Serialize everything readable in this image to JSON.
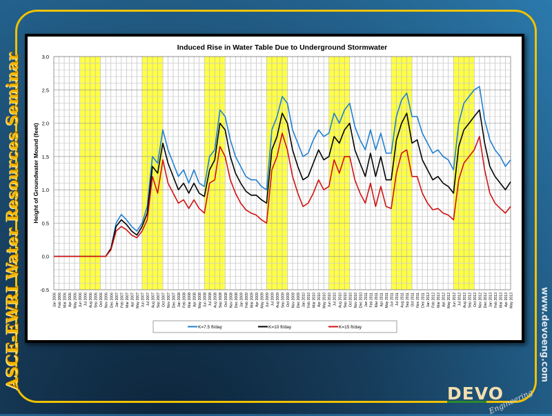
{
  "slide": {
    "side_title": "ASCE-EWRI Water Resources Seminar",
    "website": "www.devoeng.com",
    "logo_text": "DEVO",
    "logo_subtext": "Engineering"
  },
  "colors": {
    "blue": "#1f7fd0",
    "black": "#000000",
    "red": "#d01010",
    "highlight": "#ffff44",
    "frame": "#f2c200"
  },
  "chart_data": {
    "type": "line",
    "title": "Induced Rise in Water Table Due to Underground Stormwater",
    "xlabel": "",
    "ylabel": "Height of Groundwater Mound (feet)",
    "ylim": [
      -0.5,
      3.0
    ],
    "yticks": [
      "-0.5",
      "0.0",
      "0.5",
      "1.0",
      "1.5",
      "2.0",
      "2.5",
      "3.0"
    ],
    "grid": true,
    "legend_position": "bottom",
    "x": [
      "Jan 2006",
      "Feb 2006",
      "Mar 2006",
      "Apr 2006",
      "May 2006",
      "Jun 2006",
      "Jul 2006",
      "Aug 2006",
      "Sep 2006",
      "Oct 2006",
      "Nov 2006",
      "Dec 2006",
      "Jan 2007",
      "Feb 2007",
      "Mar 2007",
      "Apr 2007",
      "May 2007",
      "Jun 2007",
      "Jul 2007",
      "Aug 2007",
      "Sep 2007",
      "Oct 2007",
      "Nov 2007",
      "Dec 2007",
      "Jan 2008",
      "Feb 2008",
      "Mar 2008",
      "Apr 2008",
      "May 2008",
      "Jun 2008",
      "Jul 2008",
      "Aug 2008",
      "Sep 2008",
      "Oct 2008",
      "Nov 2008",
      "Dec 2008",
      "Jan 2009",
      "Feb 2009",
      "Mar 2009",
      "Apr 2009",
      "May 2009",
      "Jun 2009",
      "Jul 2009",
      "Aug 2009",
      "Sep 2009",
      "Oct 2009",
      "Nov 2009",
      "Dec 2009",
      "Jan 2010",
      "Feb 2010",
      "Mar 2010",
      "Apr 2010",
      "May 2010",
      "Jun 2010",
      "Jul 2010",
      "Aug 2010",
      "Sep 2010",
      "Oct 2010",
      "Nov 2010",
      "Dec 2010",
      "Jan 2011",
      "Feb 2011",
      "Mar 2011",
      "Apr 2011",
      "May 2011",
      "Jun 2011",
      "Jul 2011",
      "Aug 2011",
      "Sep 2011",
      "Oct 2011",
      "Nov 2011",
      "Dec 2011",
      "Jan 2012",
      "Feb 2012",
      "Mar 2012",
      "Apr 2012",
      "May 2012",
      "Jun 2012",
      "Jul 2012",
      "Aug 2012",
      "Sep 2012",
      "Oct 2012",
      "Nov 2012",
      "Dec 2012",
      "Jan 2013",
      "Feb 2013",
      "Mar 2013",
      "Apr 2013",
      "May 2013"
    ],
    "highlight_periods": [
      {
        "start": "Jun 2006",
        "end": "Oct 2006"
      },
      {
        "start": "Jun 2007",
        "end": "Oct 2007"
      },
      {
        "start": "Jun 2008",
        "end": "Oct 2008"
      },
      {
        "start": "Jun 2009",
        "end": "Oct 2009"
      },
      {
        "start": "Jun 2010",
        "end": "Oct 2010"
      },
      {
        "start": "Jun 2011",
        "end": "Oct 2011"
      },
      {
        "start": "Jun 2012",
        "end": "Oct 2012"
      }
    ],
    "series": [
      {
        "name": "K=7.5 ft/day",
        "color": "#1f7fd0",
        "values": [
          0,
          0,
          0,
          0,
          0,
          0,
          0,
          0,
          0,
          0,
          0,
          0.12,
          0.5,
          0.63,
          0.55,
          0.45,
          0.38,
          0.5,
          0.75,
          1.5,
          1.4,
          1.9,
          1.6,
          1.4,
          1.2,
          1.3,
          1.1,
          1.3,
          1.1,
          1.05,
          1.5,
          1.6,
          2.2,
          2.1,
          1.75,
          1.5,
          1.35,
          1.2,
          1.15,
          1.15,
          1.05,
          1.0,
          1.9,
          2.1,
          2.4,
          2.3,
          1.9,
          1.7,
          1.5,
          1.55,
          1.75,
          1.9,
          1.8,
          1.85,
          2.15,
          2.0,
          2.2,
          2.3,
          1.95,
          1.75,
          1.6,
          1.9,
          1.6,
          1.85,
          1.55,
          1.55,
          2.1,
          2.35,
          2.45,
          2.1,
          2.1,
          1.85,
          1.7,
          1.55,
          1.6,
          1.5,
          1.45,
          1.3,
          2.0,
          2.3,
          2.4,
          2.5,
          2.55,
          2.05,
          1.75,
          1.6,
          1.5,
          1.35,
          1.45
        ]
      },
      {
        "name": "K=10 ft/day",
        "color": "#000000",
        "values": [
          0,
          0,
          0,
          0,
          0,
          0,
          0,
          0,
          0,
          0,
          0,
          0.12,
          0.45,
          0.55,
          0.48,
          0.38,
          0.32,
          0.45,
          0.65,
          1.35,
          1.25,
          1.7,
          1.4,
          1.2,
          1.0,
          1.1,
          0.95,
          1.1,
          0.95,
          0.9,
          1.3,
          1.45,
          2.0,
          1.9,
          1.5,
          1.25,
          1.1,
          0.98,
          0.92,
          0.92,
          0.85,
          0.8,
          1.6,
          1.8,
          2.15,
          2.0,
          1.6,
          1.35,
          1.15,
          1.2,
          1.4,
          1.6,
          1.45,
          1.5,
          1.8,
          1.7,
          1.9,
          2.0,
          1.6,
          1.4,
          1.2,
          1.55,
          1.2,
          1.5,
          1.15,
          1.15,
          1.75,
          2.0,
          2.15,
          1.7,
          1.75,
          1.45,
          1.3,
          1.15,
          1.2,
          1.1,
          1.05,
          0.95,
          1.65,
          1.9,
          2.0,
          2.1,
          2.2,
          1.7,
          1.35,
          1.2,
          1.1,
          1.0,
          1.12
        ]
      },
      {
        "name": "K=15 ft/day",
        "color": "#d01010",
        "values": [
          0,
          0,
          0,
          0,
          0,
          0,
          0,
          0,
          0,
          0,
          0,
          0.1,
          0.38,
          0.45,
          0.4,
          0.32,
          0.28,
          0.38,
          0.55,
          1.2,
          0.95,
          1.45,
          1.1,
          0.95,
          0.8,
          0.85,
          0.72,
          0.85,
          0.72,
          0.65,
          1.1,
          1.15,
          1.65,
          1.5,
          1.15,
          0.95,
          0.8,
          0.7,
          0.65,
          0.62,
          0.55,
          0.5,
          1.3,
          1.5,
          1.85,
          1.6,
          1.2,
          0.95,
          0.75,
          0.8,
          0.95,
          1.15,
          1.0,
          1.05,
          1.45,
          1.25,
          1.5,
          1.5,
          1.15,
          0.95,
          0.8,
          1.1,
          0.75,
          1.05,
          0.75,
          0.72,
          1.25,
          1.55,
          1.6,
          1.2,
          1.2,
          0.95,
          0.8,
          0.7,
          0.72,
          0.65,
          0.62,
          0.55,
          1.15,
          1.4,
          1.5,
          1.6,
          1.8,
          1.3,
          0.95,
          0.8,
          0.72,
          0.65,
          0.75
        ]
      }
    ]
  }
}
